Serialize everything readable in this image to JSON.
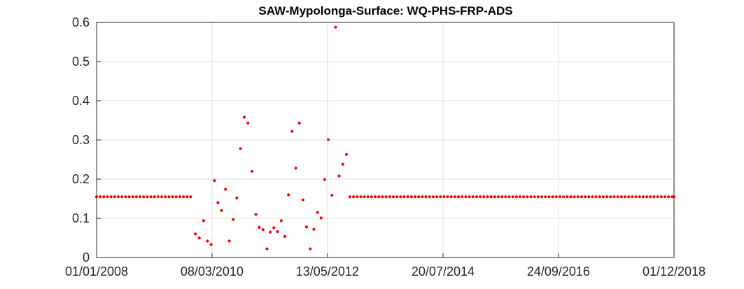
{
  "chart_data": {
    "type": "scatter",
    "title": "SAW-Mypolonga-Surface: WQ-PHS-FRP-ADS",
    "xlabel": "",
    "ylabel": "",
    "x_axis_kind": "date",
    "xlim": [
      "2008-01-01",
      "2018-12-01"
    ],
    "ylim": [
      0,
      0.6
    ],
    "x_ticks": [
      "2008-01-01",
      "2010-03-08",
      "2012-05-13",
      "2014-07-20",
      "2016-09-24",
      "2018-12-01"
    ],
    "x_tick_labels": [
      "01/01/2008",
      "08/03/2010",
      "13/05/2012",
      "20/07/2014",
      "24/09/2016",
      "01/12/2018"
    ],
    "y_ticks": [
      0,
      0.1,
      0.2,
      0.3,
      0.4,
      0.5,
      0.6
    ],
    "y_tick_labels": [
      "0",
      "0.1",
      "0.2",
      "0.3",
      "0.4",
      "0.5",
      "0.6"
    ],
    "grid": true,
    "marker_color": "#ff0000",
    "series": [
      {
        "points": [
          [
            "2008-01-01",
            0.155
          ],
          [
            "2008-01-26",
            0.155
          ],
          [
            "2008-02-20",
            0.155
          ],
          [
            "2008-03-16",
            0.155
          ],
          [
            "2008-04-10",
            0.155
          ],
          [
            "2008-05-05",
            0.155
          ],
          [
            "2008-05-30",
            0.155
          ],
          [
            "2008-06-24",
            0.155
          ],
          [
            "2008-07-19",
            0.155
          ],
          [
            "2008-08-13",
            0.155
          ],
          [
            "2008-09-07",
            0.155
          ],
          [
            "2008-10-02",
            0.155
          ],
          [
            "2008-10-27",
            0.155
          ],
          [
            "2008-11-21",
            0.155
          ],
          [
            "2008-12-16",
            0.155
          ],
          [
            "2009-01-10",
            0.155
          ],
          [
            "2009-02-04",
            0.155
          ],
          [
            "2009-03-01",
            0.155
          ],
          [
            "2009-03-26",
            0.155
          ],
          [
            "2009-04-20",
            0.155
          ],
          [
            "2009-05-15",
            0.155
          ],
          [
            "2009-06-09",
            0.155
          ],
          [
            "2009-07-04",
            0.155
          ],
          [
            "2009-07-29",
            0.155
          ],
          [
            "2009-08-23",
            0.155
          ],
          [
            "2009-09-17",
            0.155
          ],
          [
            "2009-10-12",
            0.155
          ],
          [
            "2009-11-13",
            0.06
          ],
          [
            "2009-12-10",
            0.05
          ],
          [
            "2010-01-09",
            0.094
          ],
          [
            "2010-02-05",
            0.042
          ],
          [
            "2010-03-02",
            0.033
          ],
          [
            "2010-03-25",
            0.196
          ],
          [
            "2010-04-18",
            0.14
          ],
          [
            "2010-05-13",
            0.12
          ],
          [
            "2010-06-09",
            0.174
          ],
          [
            "2010-07-05",
            0.042
          ],
          [
            "2010-08-01",
            0.097
          ],
          [
            "2010-08-26",
            0.152
          ],
          [
            "2010-09-21",
            0.278
          ],
          [
            "2010-10-17",
            0.358
          ],
          [
            "2010-11-11",
            0.343
          ],
          [
            "2010-12-09",
            0.22
          ],
          [
            "2011-01-05",
            0.11
          ],
          [
            "2011-01-28",
            0.077
          ],
          [
            "2011-02-23",
            0.071
          ],
          [
            "2011-03-22",
            0.022
          ],
          [
            "2011-04-14",
            0.065
          ],
          [
            "2011-05-09",
            0.076
          ],
          [
            "2011-06-03",
            0.066
          ],
          [
            "2011-06-29",
            0.094
          ],
          [
            "2011-07-24",
            0.054
          ],
          [
            "2011-08-18",
            0.16
          ],
          [
            "2011-09-12",
            0.322
          ],
          [
            "2011-10-07",
            0.228
          ],
          [
            "2011-11-01",
            0.343
          ],
          [
            "2011-11-26",
            0.147
          ],
          [
            "2011-12-21",
            0.078
          ],
          [
            "2012-01-15",
            0.022
          ],
          [
            "2012-02-09",
            0.072
          ],
          [
            "2012-03-06",
            0.115
          ],
          [
            "2012-03-30",
            0.101
          ],
          [
            "2012-04-24",
            0.199
          ],
          [
            "2012-05-19",
            0.301
          ],
          [
            "2012-06-13",
            0.159
          ],
          [
            "2012-07-08",
            0.588
          ],
          [
            "2012-08-02",
            0.208
          ],
          [
            "2012-08-27",
            0.238
          ],
          [
            "2012-09-21",
            0.263
          ],
          [
            "2012-10-15",
            0.155
          ],
          [
            "2012-11-09",
            0.155
          ],
          [
            "2012-12-04",
            0.155
          ],
          [
            "2012-12-29",
            0.155
          ],
          [
            "2013-01-23",
            0.155
          ],
          [
            "2013-02-17",
            0.155
          ],
          [
            "2013-03-14",
            0.155
          ],
          [
            "2013-04-08",
            0.155
          ],
          [
            "2013-05-03",
            0.155
          ],
          [
            "2013-05-28",
            0.155
          ],
          [
            "2013-06-22",
            0.155
          ],
          [
            "2013-07-17",
            0.155
          ],
          [
            "2013-08-11",
            0.155
          ],
          [
            "2013-09-05",
            0.155
          ],
          [
            "2013-09-30",
            0.155
          ],
          [
            "2013-10-25",
            0.155
          ],
          [
            "2013-11-19",
            0.155
          ],
          [
            "2013-12-14",
            0.155
          ],
          [
            "2014-01-08",
            0.155
          ],
          [
            "2014-02-02",
            0.155
          ],
          [
            "2014-02-27",
            0.155
          ],
          [
            "2014-03-24",
            0.155
          ],
          [
            "2014-04-18",
            0.155
          ],
          [
            "2014-05-13",
            0.155
          ],
          [
            "2014-06-07",
            0.155
          ],
          [
            "2014-07-02",
            0.155
          ],
          [
            "2014-07-27",
            0.155
          ],
          [
            "2014-08-21",
            0.155
          ],
          [
            "2014-09-15",
            0.155
          ],
          [
            "2014-10-10",
            0.155
          ],
          [
            "2014-11-04",
            0.155
          ],
          [
            "2014-11-29",
            0.155
          ],
          [
            "2014-12-24",
            0.155
          ],
          [
            "2015-01-18",
            0.155
          ],
          [
            "2015-02-12",
            0.155
          ],
          [
            "2015-03-09",
            0.155
          ],
          [
            "2015-04-03",
            0.155
          ],
          [
            "2015-04-28",
            0.155
          ],
          [
            "2015-05-23",
            0.155
          ],
          [
            "2015-06-17",
            0.155
          ],
          [
            "2015-07-12",
            0.155
          ],
          [
            "2015-08-06",
            0.155
          ],
          [
            "2015-08-31",
            0.155
          ],
          [
            "2015-09-25",
            0.155
          ],
          [
            "2015-10-20",
            0.155
          ],
          [
            "2015-11-14",
            0.155
          ],
          [
            "2015-12-09",
            0.155
          ],
          [
            "2016-01-03",
            0.155
          ],
          [
            "2016-01-28",
            0.155
          ],
          [
            "2016-02-22",
            0.155
          ],
          [
            "2016-03-18",
            0.155
          ],
          [
            "2016-04-12",
            0.155
          ],
          [
            "2016-05-07",
            0.155
          ],
          [
            "2016-06-01",
            0.155
          ],
          [
            "2016-06-26",
            0.155
          ],
          [
            "2016-07-21",
            0.155
          ],
          [
            "2016-08-15",
            0.155
          ],
          [
            "2016-09-09",
            0.155
          ],
          [
            "2016-10-04",
            0.155
          ],
          [
            "2016-10-29",
            0.155
          ],
          [
            "2016-11-23",
            0.155
          ],
          [
            "2016-12-18",
            0.155
          ],
          [
            "2017-01-12",
            0.155
          ],
          [
            "2017-02-06",
            0.155
          ],
          [
            "2017-03-03",
            0.155
          ],
          [
            "2017-03-28",
            0.155
          ],
          [
            "2017-04-22",
            0.155
          ],
          [
            "2017-05-17",
            0.155
          ],
          [
            "2017-06-11",
            0.155
          ],
          [
            "2017-07-06",
            0.155
          ],
          [
            "2017-07-31",
            0.155
          ],
          [
            "2017-08-25",
            0.155
          ],
          [
            "2017-09-19",
            0.155
          ],
          [
            "2017-10-14",
            0.155
          ],
          [
            "2017-11-08",
            0.155
          ],
          [
            "2017-12-03",
            0.155
          ],
          [
            "2017-12-28",
            0.155
          ],
          [
            "2018-01-22",
            0.155
          ],
          [
            "2018-02-16",
            0.155
          ],
          [
            "2018-03-13",
            0.155
          ],
          [
            "2018-04-07",
            0.155
          ],
          [
            "2018-05-02",
            0.155
          ],
          [
            "2018-05-27",
            0.155
          ],
          [
            "2018-06-21",
            0.155
          ],
          [
            "2018-07-16",
            0.155
          ],
          [
            "2018-08-10",
            0.155
          ],
          [
            "2018-09-04",
            0.155
          ],
          [
            "2018-09-29",
            0.155
          ],
          [
            "2018-10-24",
            0.155
          ],
          [
            "2018-11-18",
            0.155
          ],
          [
            "2018-12-01",
            0.155
          ]
        ]
      }
    ]
  }
}
